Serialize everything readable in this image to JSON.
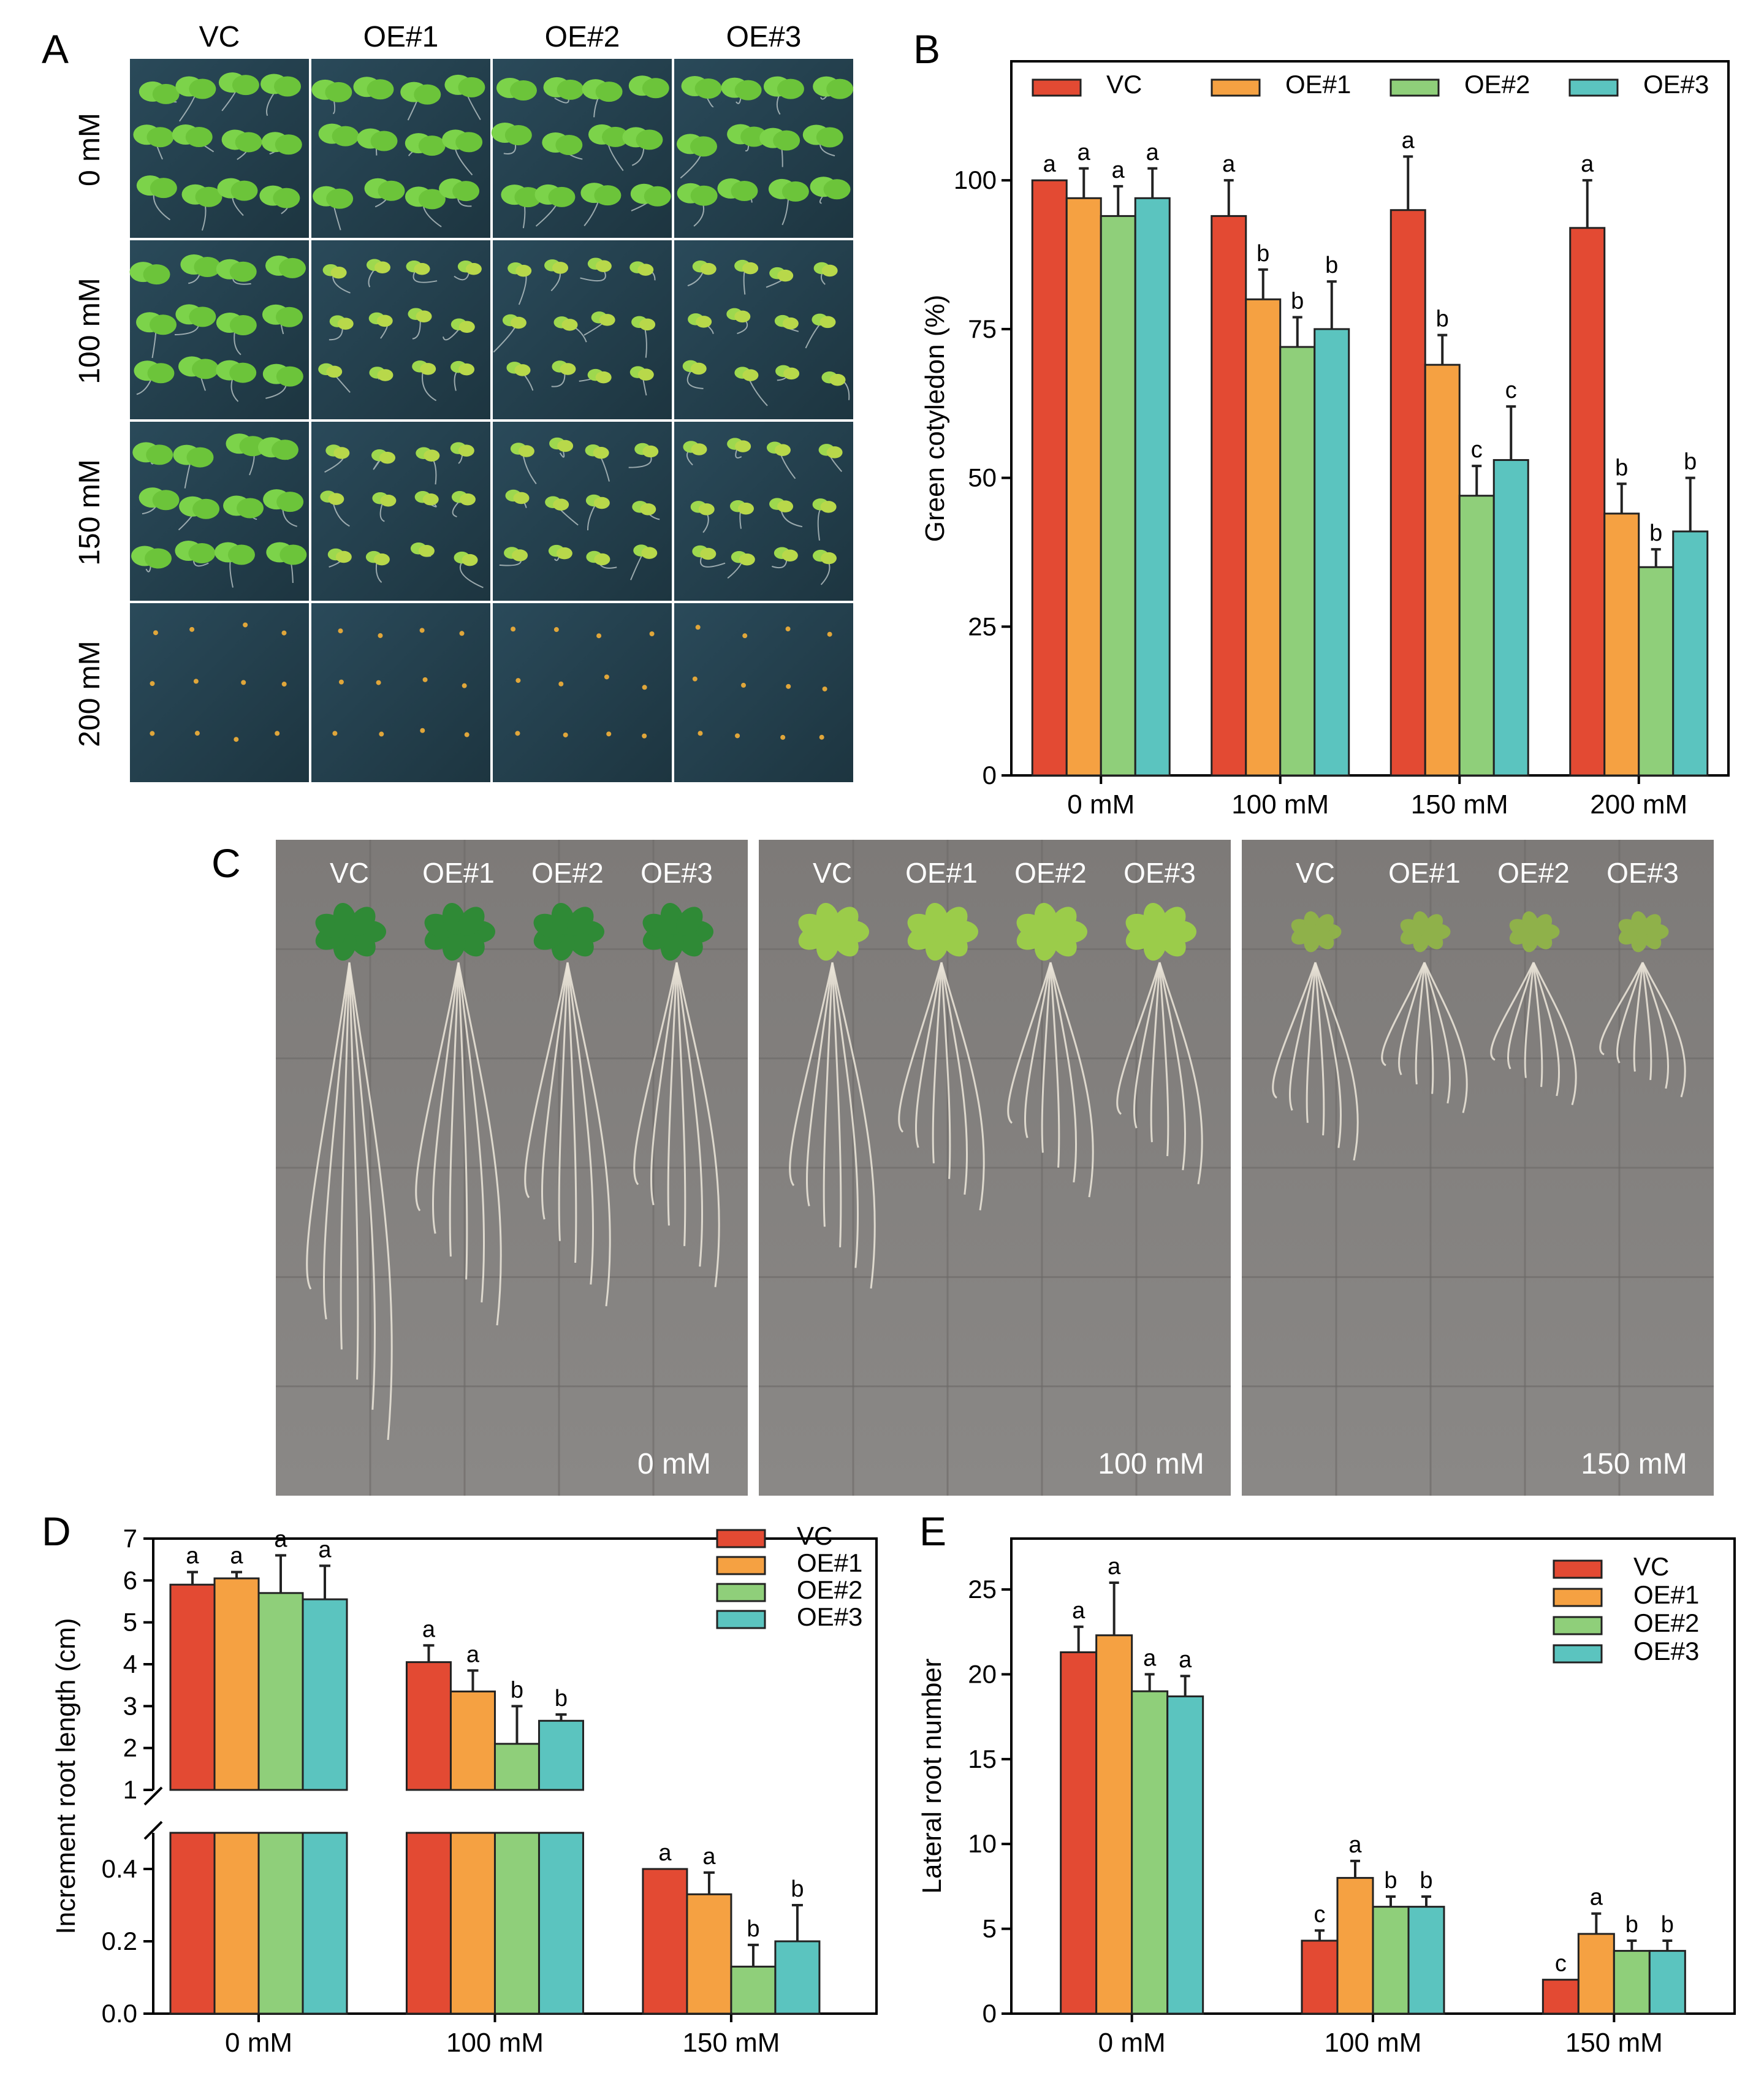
{
  "colors": {
    "VC": "#e34a33",
    "OE#1": "#f5a142",
    "OE#2": "#8fcf7a",
    "OE#3": "#5bc4bf",
    "axis": "#000000"
  },
  "panel_labels": {
    "A": "A",
    "B": "B",
    "C": "C",
    "D": "D",
    "E": "E"
  },
  "panelA": {
    "columns": [
      "VC",
      "OE#1",
      "OE#2",
      "OE#3"
    ],
    "rows": [
      "0 mM",
      "100 mM",
      "150 mM",
      "200 mM"
    ]
  },
  "panelC": {
    "groups": [
      {
        "condition": "0 mM",
        "labels": [
          "VC",
          "OE#1",
          "OE#2",
          "OE#3"
        ]
      },
      {
        "condition": "100 mM",
        "labels": [
          "VC",
          "OE#1",
          "OE#2",
          "OE#3"
        ]
      },
      {
        "condition": "150 mM",
        "labels": [
          "VC",
          "OE#1",
          "OE#2",
          "OE#3"
        ]
      }
    ]
  },
  "chart_data": [
    {
      "id": "B",
      "type": "bar",
      "title": "",
      "ylabel": "Green cotyledon (%)",
      "xlabel": "",
      "ylim": [
        0,
        120
      ],
      "yticks": [
        0,
        25,
        50,
        75,
        100
      ],
      "categories": [
        "0 mM",
        "100 mM",
        "150 mM",
        "200 mM"
      ],
      "legend": [
        "VC",
        "OE#1",
        "OE#2",
        "OE#3"
      ],
      "legend_position": "top",
      "series": [
        {
          "name": "VC",
          "values": [
            100,
            94,
            95,
            92
          ],
          "errors": [
            0,
            6,
            9,
            8
          ],
          "letters": [
            "a",
            "a",
            "a",
            "a"
          ]
        },
        {
          "name": "OE#1",
          "values": [
            97,
            80,
            69,
            44
          ],
          "errors": [
            5,
            5,
            5,
            5
          ],
          "letters": [
            "a",
            "b",
            "b",
            "b"
          ]
        },
        {
          "name": "OE#2",
          "values": [
            94,
            72,
            47,
            35
          ],
          "errors": [
            5,
            5,
            5,
            3
          ],
          "letters": [
            "a",
            "b",
            "c",
            "b"
          ]
        },
        {
          "name": "OE#3",
          "values": [
            97,
            75,
            53,
            41
          ],
          "errors": [
            5,
            8,
            9,
            9
          ],
          "letters": [
            "a",
            "b",
            "c",
            "b"
          ]
        }
      ]
    },
    {
      "id": "D",
      "type": "bar",
      "title": "",
      "ylabel": "Increment root length (cm)",
      "xlabel": "",
      "axis_break": true,
      "ylim_lower": [
        0,
        0.5
      ],
      "yticks_lower": [
        "0.0",
        "0.2",
        "0.4"
      ],
      "ylim_upper": [
        1,
        7
      ],
      "yticks_upper": [
        "1",
        "2",
        "3",
        "4",
        "5",
        "6",
        "7"
      ],
      "categories": [
        "0 mM",
        "100 mM",
        "150 mM"
      ],
      "legend": [
        "VC",
        "OE#1",
        "OE#2",
        "OE#3"
      ],
      "legend_position": "top-right",
      "series": [
        {
          "name": "VC",
          "values": [
            5.9,
            4.05,
            0.4
          ],
          "errors": [
            0.3,
            0.4,
            0
          ],
          "letters": [
            "a",
            "a",
            "a"
          ]
        },
        {
          "name": "OE#1",
          "values": [
            6.05,
            3.35,
            0.33
          ],
          "errors": [
            0.15,
            0.5,
            0.06
          ],
          "letters": [
            "a",
            "a",
            "a"
          ]
        },
        {
          "name": "OE#2",
          "values": [
            5.7,
            2.1,
            0.13
          ],
          "errors": [
            0.9,
            0.9,
            0.06
          ],
          "letters": [
            "a",
            "b",
            "b"
          ]
        },
        {
          "name": "OE#3",
          "values": [
            5.55,
            2.65,
            0.2
          ],
          "errors": [
            0.8,
            0.15,
            0.1
          ],
          "letters": [
            "a",
            "b",
            "b"
          ]
        }
      ]
    },
    {
      "id": "E",
      "type": "bar",
      "title": "",
      "ylabel": "Lateral root number",
      "xlabel": "",
      "ylim": [
        0,
        28
      ],
      "yticks": [
        0,
        5,
        10,
        15,
        20,
        25
      ],
      "categories": [
        "0 mM",
        "100 mM",
        "150 mM"
      ],
      "legend": [
        "VC",
        "OE#1",
        "OE#2",
        "OE#3"
      ],
      "legend_position": "top-right",
      "series": [
        {
          "name": "VC",
          "values": [
            21.3,
            4.3,
            2.0
          ],
          "errors": [
            1.5,
            0.6,
            0
          ],
          "letters": [
            "a",
            "c",
            "c"
          ]
        },
        {
          "name": "OE#1",
          "values": [
            22.3,
            8.0,
            4.7
          ],
          "errors": [
            3.1,
            1.0,
            1.2
          ],
          "letters": [
            "a",
            "a",
            "a"
          ]
        },
        {
          "name": "OE#2",
          "values": [
            19.0,
            6.3,
            3.7
          ],
          "errors": [
            1.0,
            0.6,
            0.6
          ],
          "letters": [
            "a",
            "b",
            "b"
          ]
        },
        {
          "name": "OE#3",
          "values": [
            18.7,
            6.3,
            3.7
          ],
          "errors": [
            1.2,
            0.6,
            0.6
          ],
          "letters": [
            "a",
            "b",
            "b"
          ]
        }
      ]
    }
  ]
}
